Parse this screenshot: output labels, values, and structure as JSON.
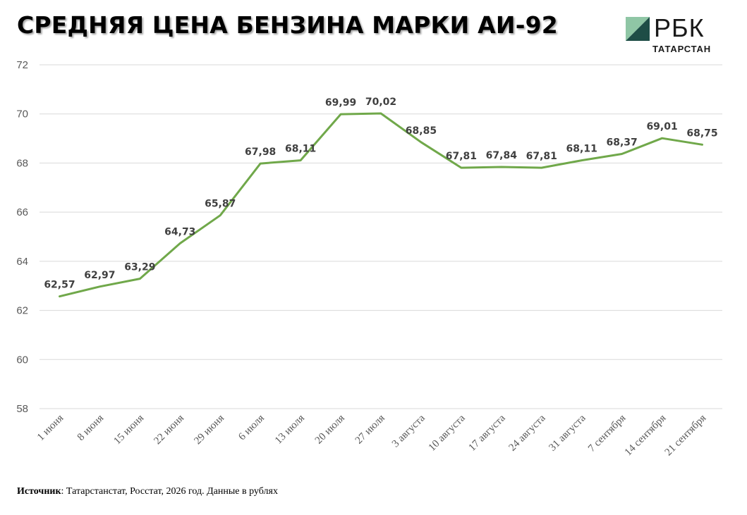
{
  "header": {
    "title": "СРЕДНЯЯ ЦЕНА БЕНЗИНА МАРКИ АИ-92"
  },
  "logo": {
    "word": "РБК",
    "sub": "ТАТАРСТАН",
    "colors": {
      "dark": "#1e4d46",
      "light": "#8fc6a5"
    }
  },
  "footer": {
    "source_label": "Источник",
    "source_text": ": Татарстанстат, Росстат, 2026 год. Данные в рублях"
  },
  "chart_data": {
    "type": "line",
    "title": "СРЕДНЯЯ ЦЕНА БЕНЗИНА МАРКИ АИ-92",
    "xlabel": "",
    "ylabel": "",
    "ylim": [
      58,
      72
    ],
    "yticks": [
      58,
      60,
      62,
      64,
      66,
      68,
      70,
      72
    ],
    "grid": true,
    "legend": "none",
    "line_color": "#70a84a",
    "categories": [
      "1 июня",
      "8 июня",
      "15 июня",
      "22 июня",
      "29 июня",
      "6 июля",
      "13 июля",
      "20 июля",
      "27 июля",
      "3 августа",
      "10 августа",
      "17 августа",
      "24 августа",
      "31 августа",
      "7 сентября",
      "14 сентября",
      "21 сентября"
    ],
    "values": [
      62.57,
      62.97,
      63.29,
      64.73,
      65.87,
      67.98,
      68.11,
      69.99,
      70.02,
      68.85,
      67.81,
      67.84,
      67.81,
      68.11,
      68.37,
      69.01,
      68.75
    ],
    "labels": [
      "62,57",
      "62,97",
      "63,29",
      "64,73",
      "65,87",
      "67,98",
      "68,11",
      "69,99",
      "70,02",
      "68,85",
      "67,81",
      "67,84",
      "67,81",
      "68,11",
      "68,37",
      "69,01",
      "68,75"
    ]
  }
}
